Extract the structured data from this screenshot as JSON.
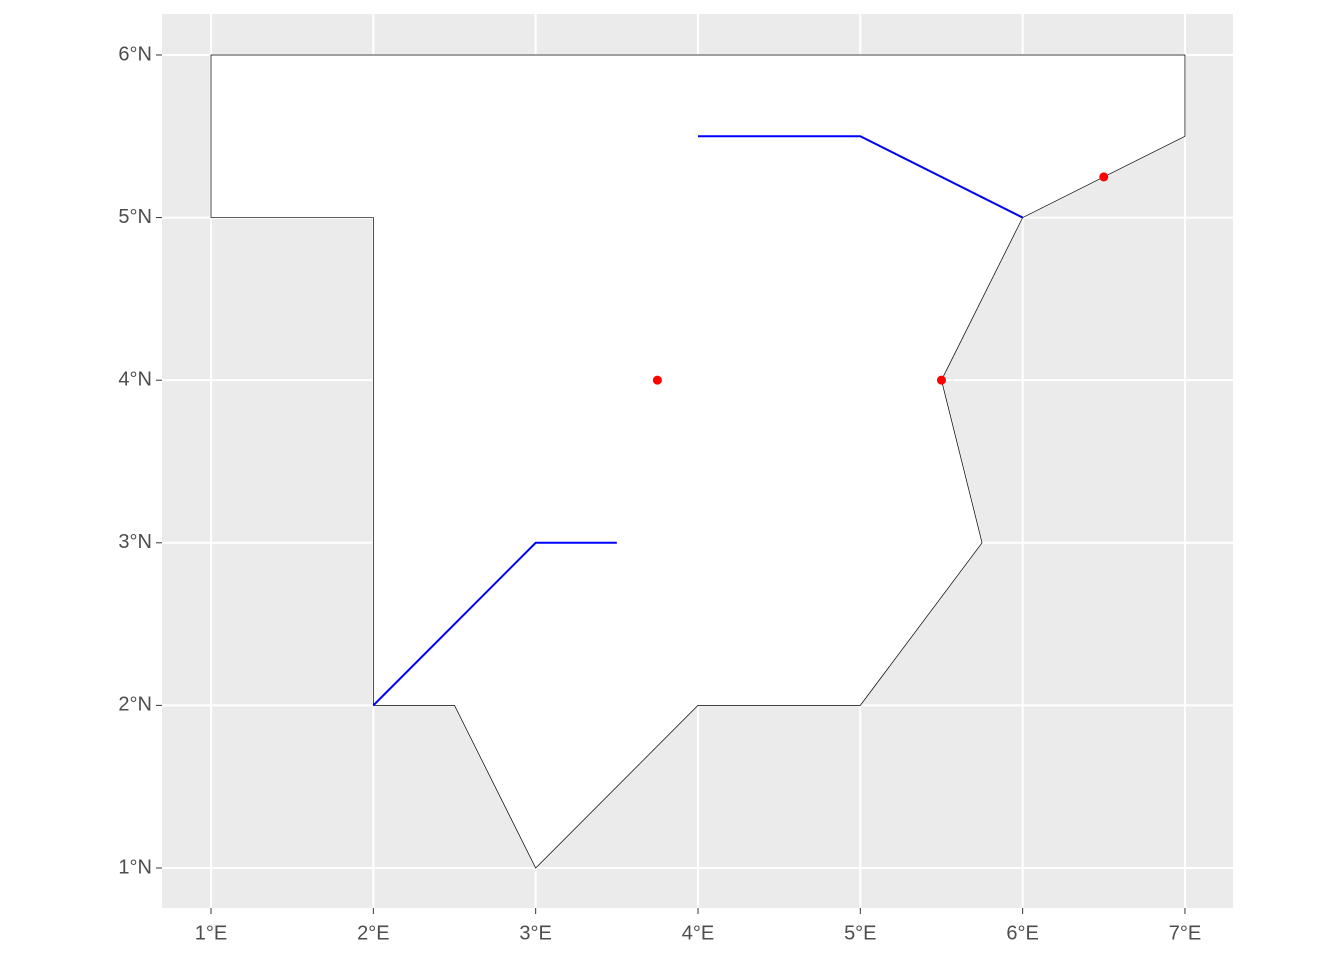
{
  "chart_data": {
    "type": "map",
    "xlim": [
      0.698,
      7.296
    ],
    "ylim": [
      0.754,
      6.252
    ],
    "xticks": [
      {
        "value": 1,
        "label": "1°E"
      },
      {
        "value": 2,
        "label": "2°E"
      },
      {
        "value": 3,
        "label": "3°E"
      },
      {
        "value": 4,
        "label": "4°E"
      },
      {
        "value": 5,
        "label": "5°E"
      },
      {
        "value": 6,
        "label": "6°E"
      },
      {
        "value": 7,
        "label": "7°E"
      }
    ],
    "yticks": [
      {
        "value": 1,
        "label": "1°N"
      },
      {
        "value": 2,
        "label": "2°N"
      },
      {
        "value": 3,
        "label": "3°N"
      },
      {
        "value": 4,
        "label": "4°N"
      },
      {
        "value": 5,
        "label": "5°N"
      },
      {
        "value": 6,
        "label": "6°N"
      }
    ],
    "grid": true,
    "polygon": {
      "color": "#000000",
      "fill": "#ffffff",
      "x": [
        1,
        7,
        7,
        6,
        5.5,
        5.75,
        5,
        4,
        3,
        2.5,
        2,
        2,
        1,
        1
      ],
      "y": [
        6,
        6,
        5.5,
        5,
        4,
        3,
        2,
        2,
        1,
        2,
        2,
        5,
        5,
        6
      ]
    },
    "lines": [
      {
        "color": "#0000ff",
        "x": [
          2,
          3,
          3.5
        ],
        "y": [
          2,
          3,
          3
        ]
      },
      {
        "color": "#0000ff",
        "x": [
          4,
          5,
          6
        ],
        "y": [
          5.5,
          5.5,
          5
        ]
      }
    ],
    "points": {
      "color": "#ff0000",
      "x": [
        3.75,
        5.5,
        6.5
      ],
      "y": [
        4,
        4,
        5.25
      ]
    }
  }
}
